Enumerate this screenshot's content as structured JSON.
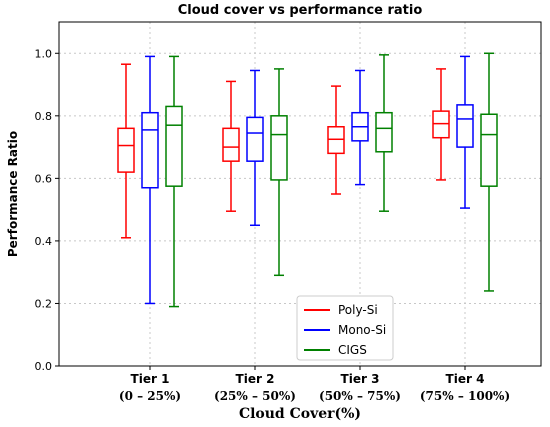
{
  "chart_data": {
    "type": "box",
    "title": "Cloud cover vs performance ratio",
    "xlabel": "Cloud Cover(%)",
    "ylabel": "Performance Ratio",
    "ylim": [
      0.0,
      1.1
    ],
    "yticks": [
      "0.0",
      "0.2",
      "0.4",
      "0.6",
      "0.8",
      "1.0"
    ],
    "grid": true,
    "legend_position": "bottom-center",
    "categories": [
      {
        "name": "Tier 1",
        "range": "(0 – 25%)"
      },
      {
        "name": "Tier 2",
        "range": "(25% – 50%)"
      },
      {
        "name": "Tier 3",
        "range": "(50% – 75%)"
      },
      {
        "name": "Tier 4",
        "range": "(75% – 100%)"
      }
    ],
    "series": [
      {
        "name": "Poly-Si",
        "color": "#ff0000",
        "boxes": [
          {
            "min": 0.41,
            "q1": 0.62,
            "median": 0.705,
            "q3": 0.76,
            "max": 0.965
          },
          {
            "min": 0.495,
            "q1": 0.655,
            "median": 0.7,
            "q3": 0.76,
            "max": 0.91
          },
          {
            "min": 0.55,
            "q1": 0.68,
            "median": 0.725,
            "q3": 0.765,
            "max": 0.895
          },
          {
            "min": 0.595,
            "q1": 0.73,
            "median": 0.775,
            "q3": 0.815,
            "max": 0.95
          }
        ]
      },
      {
        "name": "Mono-Si",
        "color": "#0000ff",
        "boxes": [
          {
            "min": 0.2,
            "q1": 0.57,
            "median": 0.755,
            "q3": 0.81,
            "max": 0.99
          },
          {
            "min": 0.45,
            "q1": 0.655,
            "median": 0.745,
            "q3": 0.795,
            "max": 0.945
          },
          {
            "min": 0.58,
            "q1": 0.72,
            "median": 0.765,
            "q3": 0.81,
            "max": 0.945
          },
          {
            "min": 0.505,
            "q1": 0.7,
            "median": 0.79,
            "q3": 0.835,
            "max": 0.99
          }
        ]
      },
      {
        "name": "CIGS",
        "color": "#008000",
        "boxes": [
          {
            "min": 0.19,
            "q1": 0.575,
            "median": 0.77,
            "q3": 0.83,
            "max": 0.99
          },
          {
            "min": 0.29,
            "q1": 0.595,
            "median": 0.74,
            "q3": 0.8,
            "max": 0.95
          },
          {
            "min": 0.495,
            "q1": 0.685,
            "median": 0.76,
            "q3": 0.81,
            "max": 0.995
          },
          {
            "min": 0.24,
            "q1": 0.575,
            "median": 0.74,
            "q3": 0.805,
            "max": 1.0
          }
        ]
      }
    ]
  }
}
